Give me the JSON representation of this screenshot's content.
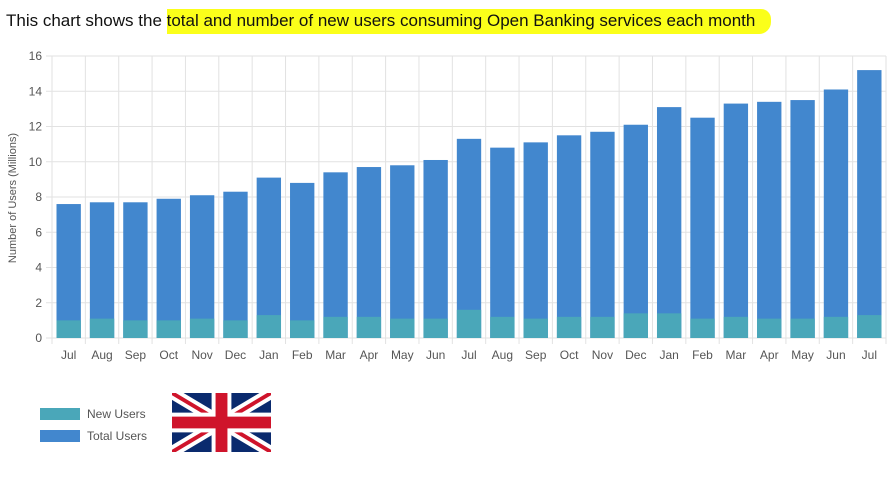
{
  "headline": {
    "prefix": "This chart shows the ",
    "highlight": "total and number of new users consuming Open Banking services each month"
  },
  "colors": {
    "new_users": "#4aa7b9",
    "total_users": "#4287ce",
    "highlight": "#fbff1a",
    "grid": "#e2e2e2",
    "flag_blue": "#0a2a6e",
    "flag_red": "#cf142b"
  },
  "legend": [
    {
      "label": "New Users",
      "color": "#4aa7b9"
    },
    {
      "label": "Total Users",
      "color": "#4287ce"
    }
  ],
  "flag_icon": "uk-flag-icon",
  "chart_data": {
    "type": "bar",
    "stacked": false,
    "ylabel": "Number of Users (Millions)",
    "xlabel": "",
    "ylim": [
      0,
      16
    ],
    "yticks": [
      0,
      2,
      4,
      6,
      8,
      10,
      12,
      14,
      16
    ],
    "grid": true,
    "legend_position": "bottom-left",
    "categories": [
      "Jul",
      "Aug",
      "Sep",
      "Oct",
      "Nov",
      "Dec",
      "Jan",
      "Feb",
      "Mar",
      "Apr",
      "May",
      "Jun",
      "Jul",
      "Aug",
      "Sep",
      "Oct",
      "Nov",
      "Dec",
      "Jan",
      "Feb",
      "Mar",
      "Apr",
      "May",
      "Jun",
      "Jul"
    ],
    "series": [
      {
        "name": "Total Users",
        "color": "#4287ce",
        "values": [
          7.6,
          7.7,
          7.7,
          7.9,
          8.1,
          8.3,
          9.1,
          8.8,
          9.4,
          9.7,
          9.8,
          10.1,
          11.3,
          10.8,
          11.1,
          11.5,
          11.7,
          12.1,
          13.1,
          12.5,
          13.3,
          13.4,
          13.5,
          14.1,
          15.2
        ]
      },
      {
        "name": "New Users",
        "color": "#4aa7b9",
        "values": [
          1.0,
          1.1,
          1.0,
          1.0,
          1.1,
          1.0,
          1.3,
          1.0,
          1.2,
          1.2,
          1.1,
          1.1,
          1.6,
          1.2,
          1.1,
          1.2,
          1.2,
          1.4,
          1.4,
          1.1,
          1.2,
          1.1,
          1.1,
          1.2,
          1.3
        ]
      }
    ]
  }
}
